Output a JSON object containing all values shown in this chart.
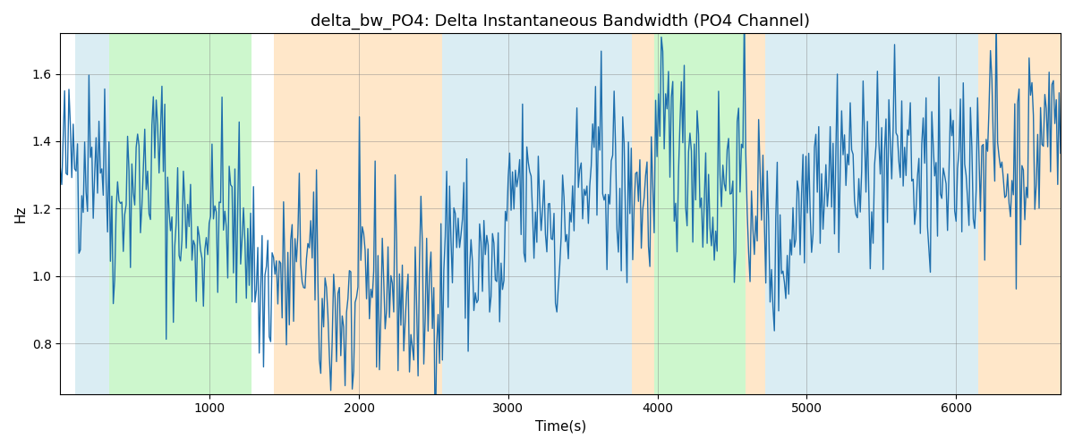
{
  "title": "delta_bw_PO4: Delta Instantaneous Bandwidth (PO4 Channel)",
  "xlabel": "Time(s)",
  "ylabel": "Hz",
  "line_color": "#1f6fad",
  "line_width": 1.0,
  "xlim": [
    0,
    6700
  ],
  "ylim": [
    0.65,
    1.72
  ],
  "yticks": [
    0.8,
    1.0,
    1.2,
    1.4,
    1.6
  ],
  "xticks": [
    1000,
    2000,
    3000,
    4000,
    5000,
    6000
  ],
  "grid": true,
  "bg_bands": [
    {
      "xmin": 100,
      "xmax": 330,
      "color": "#add8e6",
      "alpha": 0.45
    },
    {
      "xmin": 330,
      "xmax": 1280,
      "color": "#90ee90",
      "alpha": 0.45
    },
    {
      "xmin": 1280,
      "xmax": 1430,
      "color": "#ffffff",
      "alpha": 1.0
    },
    {
      "xmin": 1430,
      "xmax": 2560,
      "color": "#ffd59e",
      "alpha": 0.55
    },
    {
      "xmin": 2560,
      "xmax": 3830,
      "color": "#add8e6",
      "alpha": 0.45
    },
    {
      "xmin": 3830,
      "xmax": 3980,
      "color": "#ffd59e",
      "alpha": 0.55
    },
    {
      "xmin": 3980,
      "xmax": 4590,
      "color": "#90ee90",
      "alpha": 0.45
    },
    {
      "xmin": 4590,
      "xmax": 4720,
      "color": "#ffd59e",
      "alpha": 0.55
    },
    {
      "xmin": 4720,
      "xmax": 6150,
      "color": "#add8e6",
      "alpha": 0.45
    },
    {
      "xmin": 6150,
      "xmax": 6800,
      "color": "#ffd59e",
      "alpha": 0.55
    }
  ],
  "seed": 42,
  "n_points": 700
}
